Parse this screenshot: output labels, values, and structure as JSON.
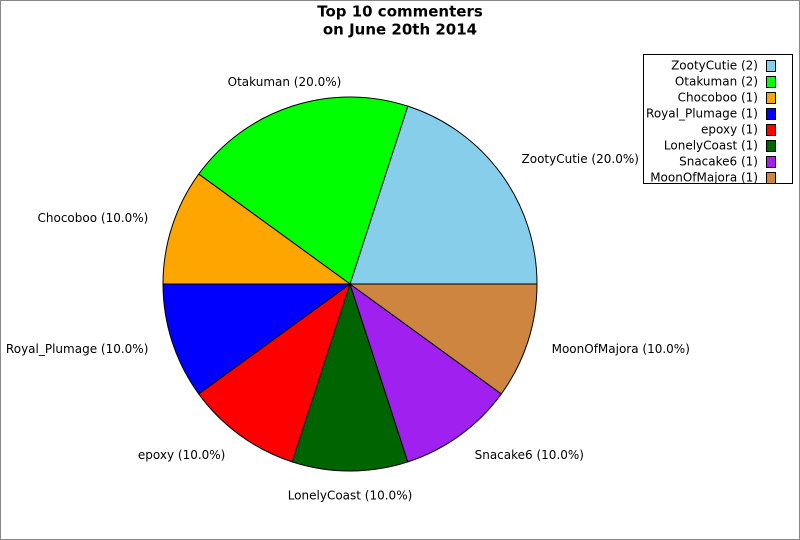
{
  "chart_data": {
    "type": "pie",
    "title": [
      "Top 10 commenters",
      "on June 20th 2014"
    ],
    "categories": [
      "ZootyCutie",
      "Otakuman",
      "Chocoboo",
      "Royal_Plumage",
      "epoxy",
      "LonelyCoast",
      "Snacake6",
      "MoonOfMajora"
    ],
    "values": [
      20,
      20,
      10,
      10,
      10,
      10,
      10,
      10
    ],
    "value_labels": [
      "ZootyCutie (20.0%)",
      "Otakuman (20.0%)",
      "Chocoboo (10.0%)",
      "Royal_Plumage (10.0%)",
      "epoxy (10.0%)",
      "LonelyCoast (10.0%)",
      "Snacake6 (10.0%)",
      "MoonOfMajora (10.0%)"
    ],
    "legend_labels": [
      "ZootyCutie (2)",
      "Otakuman (2)",
      "Chocoboo (1)",
      "Royal_Plumage (1)",
      "epoxy (1)",
      "LonelyCoast (1)",
      "Snacake6 (1)",
      "MoonOfMajora (1)"
    ],
    "colors": [
      "#87ceeb",
      "#00ff00",
      "#ffa500",
      "#0000ff",
      "#ff0000",
      "#006400",
      "#a020f0",
      "#cd853f"
    ],
    "legend_position": "upper right"
  }
}
